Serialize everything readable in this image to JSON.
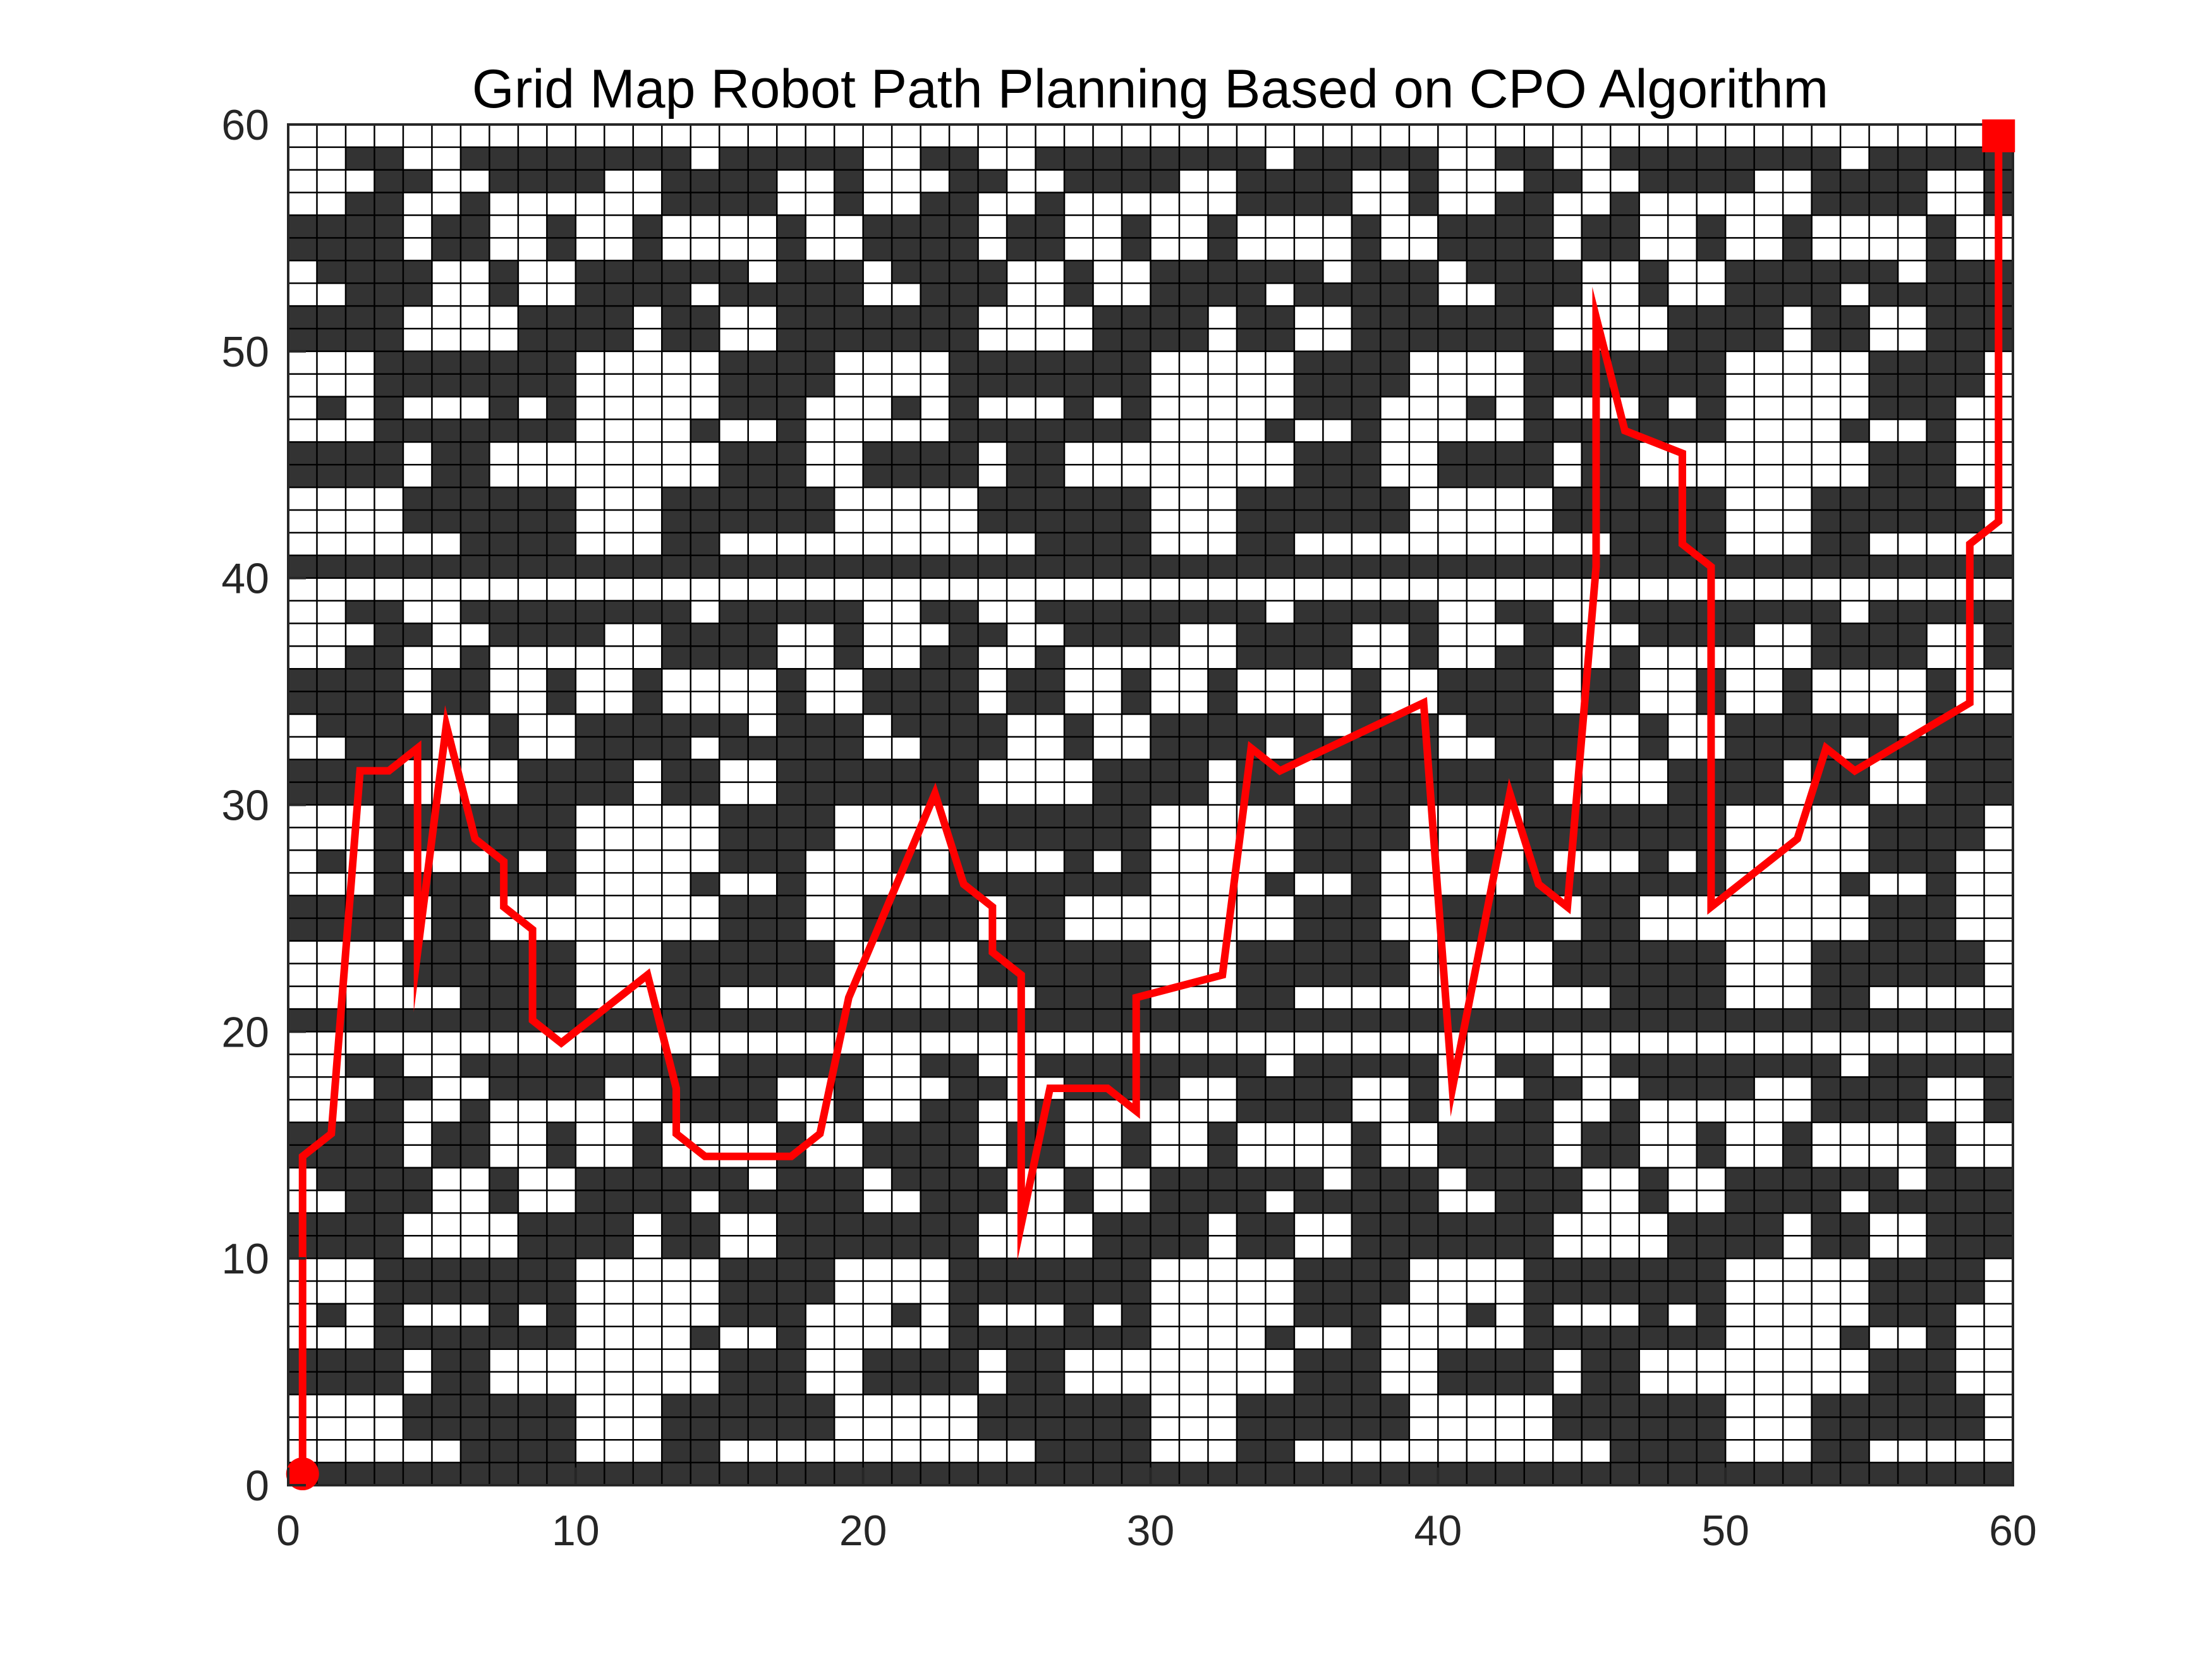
{
  "chart_data": {
    "type": "grid-path",
    "title": "Grid Map Robot Path Planning Based on CPO Algorithm",
    "xlabel": "",
    "ylabel": "",
    "xlim": [
      0,
      60
    ],
    "ylim": [
      0,
      60
    ],
    "xticks": [
      "0",
      "10",
      "20",
      "30",
      "40",
      "50",
      "60"
    ],
    "yticks": [
      "0",
      "10",
      "20",
      "30",
      "40",
      "50",
      "60"
    ],
    "grid": true,
    "grid_size": [
      60,
      60
    ],
    "obstacle_color": "#333333",
    "path_color": "#ff0000",
    "obstacle_tile_period": [
      20,
      20
    ],
    "obstacle_tile_repeat": [
      3,
      3
    ],
    "obstacle_tile_cells": [
      [
        1,
        2
      ],
      [
        1,
        3
      ],
      [
        1,
        6
      ],
      [
        1,
        7
      ],
      [
        1,
        8
      ],
      [
        1,
        9
      ],
      [
        1,
        10
      ],
      [
        1,
        11
      ],
      [
        1,
        12
      ],
      [
        1,
        13
      ],
      [
        1,
        15
      ],
      [
        1,
        16
      ],
      [
        1,
        17
      ],
      [
        1,
        18
      ],
      [
        1,
        19
      ],
      [
        2,
        3
      ],
      [
        2,
        4
      ],
      [
        2,
        7
      ],
      [
        2,
        8
      ],
      [
        2,
        9
      ],
      [
        2,
        10
      ],
      [
        2,
        13
      ],
      [
        2,
        14
      ],
      [
        2,
        15
      ],
      [
        2,
        16
      ],
      [
        2,
        19
      ],
      [
        3,
        2
      ],
      [
        3,
        3
      ],
      [
        3,
        6
      ],
      [
        3,
        13
      ],
      [
        3,
        14
      ],
      [
        3,
        15
      ],
      [
        3,
        16
      ],
      [
        3,
        19
      ],
      [
        4,
        0
      ],
      [
        4,
        1
      ],
      [
        4,
        2
      ],
      [
        4,
        3
      ],
      [
        4,
        5
      ],
      [
        4,
        6
      ],
      [
        4,
        9
      ],
      [
        4,
        12
      ],
      [
        4,
        17
      ],
      [
        5,
        0
      ],
      [
        5,
        1
      ],
      [
        5,
        2
      ],
      [
        5,
        3
      ],
      [
        5,
        5
      ],
      [
        5,
        6
      ],
      [
        5,
        9
      ],
      [
        5,
        12
      ],
      [
        5,
        17
      ],
      [
        6,
        1
      ],
      [
        6,
        2
      ],
      [
        6,
        3
      ],
      [
        6,
        4
      ],
      [
        6,
        7
      ],
      [
        6,
        10
      ],
      [
        6,
        11
      ],
      [
        6,
        12
      ],
      [
        6,
        13
      ],
      [
        6,
        14
      ],
      [
        6,
        15
      ],
      [
        6,
        17
      ],
      [
        6,
        18
      ],
      [
        6,
        19
      ],
      [
        7,
        2
      ],
      [
        7,
        3
      ],
      [
        7,
        4
      ],
      [
        7,
        7
      ],
      [
        7,
        10
      ],
      [
        7,
        11
      ],
      [
        7,
        12
      ],
      [
        7,
        13
      ],
      [
        7,
        15
      ],
      [
        7,
        16
      ],
      [
        7,
        17
      ],
      [
        7,
        18
      ],
      [
        7,
        19
      ],
      [
        8,
        0
      ],
      [
        8,
        1
      ],
      [
        8,
        2
      ],
      [
        8,
        3
      ],
      [
        8,
        8
      ],
      [
        8,
        9
      ],
      [
        8,
        10
      ],
      [
        8,
        11
      ],
      [
        8,
        13
      ],
      [
        8,
        14
      ],
      [
        8,
        17
      ],
      [
        8,
        18
      ],
      [
        8,
        19
      ],
      [
        9,
        0
      ],
      [
        9,
        1
      ],
      [
        9,
        2
      ],
      [
        9,
        3
      ],
      [
        9,
        8
      ],
      [
        9,
        9
      ],
      [
        9,
        10
      ],
      [
        9,
        11
      ],
      [
        9,
        13
      ],
      [
        9,
        14
      ],
      [
        9,
        17
      ],
      [
        9,
        18
      ],
      [
        9,
        19
      ],
      [
        10,
        3
      ],
      [
        10,
        4
      ],
      [
        10,
        5
      ],
      [
        10,
        6
      ],
      [
        10,
        7
      ],
      [
        10,
        8
      ],
      [
        10,
        9
      ],
      [
        10,
        15
      ],
      [
        10,
        16
      ],
      [
        10,
        17
      ],
      [
        10,
        18
      ],
      [
        11,
        3
      ],
      [
        11,
        4
      ],
      [
        11,
        5
      ],
      [
        11,
        6
      ],
      [
        11,
        7
      ],
      [
        11,
        8
      ],
      [
        11,
        9
      ],
      [
        11,
        15
      ],
      [
        11,
        16
      ],
      [
        11,
        17
      ],
      [
        11,
        18
      ],
      [
        12,
        1
      ],
      [
        12,
        3
      ],
      [
        12,
        7
      ],
      [
        12,
        9
      ],
      [
        12,
        15
      ],
      [
        12,
        16
      ],
      [
        12,
        17
      ],
      [
        13,
        3
      ],
      [
        13,
        4
      ],
      [
        13,
        5
      ],
      [
        13,
        6
      ],
      [
        13,
        7
      ],
      [
        13,
        8
      ],
      [
        13,
        9
      ],
      [
        13,
        14
      ],
      [
        13,
        17
      ],
      [
        14,
        0
      ],
      [
        14,
        1
      ],
      [
        14,
        2
      ],
      [
        14,
        3
      ],
      [
        14,
        5
      ],
      [
        14,
        6
      ],
      [
        14,
        15
      ],
      [
        14,
        16
      ],
      [
        14,
        17
      ],
      [
        15,
        0
      ],
      [
        15,
        1
      ],
      [
        15,
        2
      ],
      [
        15,
        3
      ],
      [
        15,
        5
      ],
      [
        15,
        6
      ],
      [
        15,
        15
      ],
      [
        15,
        16
      ],
      [
        15,
        17
      ],
      [
        16,
        4
      ],
      [
        16,
        5
      ],
      [
        16,
        6
      ],
      [
        16,
        7
      ],
      [
        16,
        8
      ],
      [
        16,
        9
      ],
      [
        16,
        13
      ],
      [
        16,
        14
      ],
      [
        16,
        15
      ],
      [
        16,
        16
      ],
      [
        16,
        17
      ],
      [
        16,
        18
      ],
      [
        17,
        4
      ],
      [
        17,
        5
      ],
      [
        17,
        6
      ],
      [
        17,
        7
      ],
      [
        17,
        8
      ],
      [
        17,
        9
      ],
      [
        17,
        13
      ],
      [
        17,
        14
      ],
      [
        17,
        15
      ],
      [
        17,
        16
      ],
      [
        17,
        17
      ],
      [
        17,
        18
      ],
      [
        18,
        6
      ],
      [
        18,
        7
      ],
      [
        18,
        8
      ],
      [
        18,
        9
      ],
      [
        18,
        13
      ],
      [
        18,
        14
      ],
      [
        19,
        0
      ],
      [
        19,
        1
      ],
      [
        19,
        2
      ],
      [
        19,
        3
      ],
      [
        19,
        4
      ],
      [
        19,
        5
      ],
      [
        19,
        6
      ],
      [
        19,
        7
      ],
      [
        19,
        8
      ],
      [
        19,
        9
      ],
      [
        19,
        10
      ],
      [
        19,
        11
      ],
      [
        19,
        12
      ],
      [
        19,
        13
      ],
      [
        19,
        14
      ],
      [
        19,
        15
      ],
      [
        19,
        16
      ],
      [
        19,
        17
      ],
      [
        19,
        18
      ],
      [
        19,
        19
      ]
    ],
    "start": [
      0.5,
      0.5
    ],
    "goal": [
      59.5,
      59.5
    ],
    "path": [
      [
        0.5,
        0.5
      ],
      [
        0.5,
        14.5
      ],
      [
        1.5,
        15.5
      ],
      [
        2.5,
        31.5
      ],
      [
        3.5,
        31.5
      ],
      [
        4.5,
        32.5
      ],
      [
        4.5,
        23.5
      ],
      [
        5.5,
        33.5
      ],
      [
        6.5,
        28.5
      ],
      [
        7.5,
        27.5
      ],
      [
        7.5,
        25.5
      ],
      [
        8.5,
        24.5
      ],
      [
        8.5,
        20.5
      ],
      [
        9.5,
        19.5
      ],
      [
        12.5,
        22.5
      ],
      [
        13.5,
        17.5
      ],
      [
        13.5,
        15.5
      ],
      [
        14.5,
        14.5
      ],
      [
        17.5,
        14.5
      ],
      [
        18.5,
        15.5
      ],
      [
        19.5,
        21.5
      ],
      [
        22.5,
        30.5
      ],
      [
        23.5,
        26.5
      ],
      [
        24.5,
        25.5
      ],
      [
        24.5,
        23.5
      ],
      [
        25.5,
        22.5
      ],
      [
        25.5,
        11.5
      ],
      [
        26.5,
        17.5
      ],
      [
        28.5,
        17.5
      ],
      [
        29.5,
        16.5
      ],
      [
        29.5,
        21.5
      ],
      [
        32.5,
        22.5
      ],
      [
        33.5,
        32.5
      ],
      [
        34.5,
        31.5
      ],
      [
        39.5,
        34.5
      ],
      [
        40.5,
        17.5
      ],
      [
        42.5,
        30.5
      ],
      [
        43.5,
        26.5
      ],
      [
        44.5,
        25.5
      ],
      [
        45.5,
        40.5
      ],
      [
        45.5,
        51.5
      ],
      [
        46.5,
        46.5
      ],
      [
        48.5,
        45.5
      ],
      [
        48.5,
        41.5
      ],
      [
        49.5,
        40.5
      ],
      [
        49.5,
        25.5
      ],
      [
        52.5,
        28.5
      ],
      [
        53.5,
        32.5
      ],
      [
        54.5,
        31.5
      ],
      [
        58.5,
        34.5
      ],
      [
        58.5,
        41.5
      ],
      [
        59.5,
        42.5
      ],
      [
        59.5,
        59.5
      ]
    ]
  }
}
